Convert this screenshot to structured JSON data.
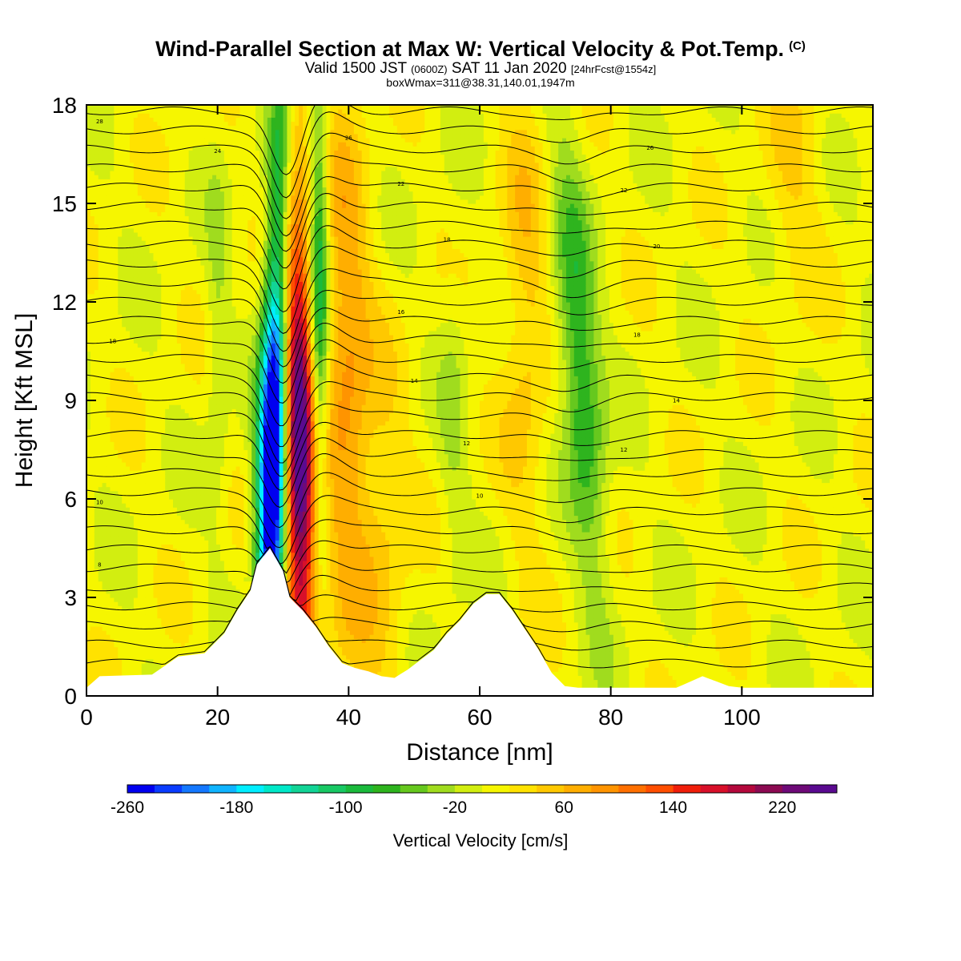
{
  "title": {
    "main": "Wind-Parallel Section at Max W: Vertical Velocity & Pot.Temp.",
    "copyright": "(C)",
    "valid_prefix": "Valid 1500 JST",
    "valid_utc": "(0600Z)",
    "valid_date": "SAT 11 Jan 2020",
    "forecast": "[24hrFcst@1554z]",
    "box": "boxWmax=311@38.31,140.01,1947m"
  },
  "chart_data": {
    "type": "heatmap",
    "xlabel": "Distance [nm]",
    "ylabel": "Height [Kft MSL]",
    "xlim": [
      0,
      120
    ],
    "ylim": [
      0,
      18
    ],
    "x_ticks": [
      "0",
      "20",
      "40",
      "60",
      "80",
      "100"
    ],
    "y_ticks": [
      "0",
      "3",
      "6",
      "9",
      "12",
      "15",
      "18"
    ],
    "colorbar": {
      "title": "Vertical Velocity [cm/s]",
      "range": [
        -260,
        260
      ],
      "step": 20,
      "tick_labels": [
        "-260",
        "-180",
        "-100",
        "-20",
        "60",
        "140",
        "220"
      ],
      "colors": [
        "#0000f0",
        "#0a3cff",
        "#1478ff",
        "#10b4ff",
        "#00eeff",
        "#00e8c8",
        "#12d496",
        "#18c864",
        "#1aba3c",
        "#2eb41e",
        "#66c81e",
        "#a0dc1e",
        "#d2ee10",
        "#f6f600",
        "#ffe200",
        "#ffc800",
        "#ffae00",
        "#ff9400",
        "#ff7000",
        "#ff4e00",
        "#f01e0a",
        "#d8102a",
        "#b4083c",
        "#8c0a52",
        "#6e0a78",
        "#5a0a90"
      ]
    },
    "velocity_features": [
      {
        "kind": "downdraft",
        "x_nm": 28.5,
        "peak_cm_s": -260
      },
      {
        "kind": "updraft",
        "x_nm": 32.5,
        "peak_cm_s": 230
      },
      {
        "kind": "updraft",
        "x_nm": 40,
        "peak_cm_s": 80
      },
      {
        "kind": "downdraft",
        "x_nm": 76,
        "peak_cm_s": -100
      },
      {
        "kind": "updraft",
        "x_nm": 68,
        "peak_cm_s": 40
      }
    ],
    "terrain_kft": {
      "x": [
        0,
        2,
        10,
        14,
        18,
        21,
        23,
        25,
        26,
        28,
        30,
        31,
        33,
        35,
        37,
        39,
        41,
        43,
        45,
        47,
        49,
        51,
        53,
        55,
        57,
        59,
        61,
        63,
        65,
        67,
        69,
        71,
        73,
        75,
        80,
        85,
        90,
        94,
        98,
        100,
        110,
        120
      ],
      "height": [
        0.25,
        0.6,
        0.65,
        1.2,
        1.3,
        1.9,
        2.6,
        3.2,
        4.0,
        4.5,
        3.8,
        3.0,
        2.6,
        2.1,
        1.5,
        1.0,
        0.85,
        0.75,
        0.6,
        0.55,
        0.8,
        1.1,
        1.4,
        1.9,
        2.3,
        2.8,
        3.1,
        3.1,
        2.6,
        2.0,
        1.4,
        0.7,
        0.3,
        0.25,
        0.25,
        0.25,
        0.25,
        0.6,
        0.3,
        0.25,
        0.25,
        0.25
      ]
    },
    "theta_contours": {
      "series": "Pot.Temp.",
      "labels": [
        "8",
        "10",
        "12",
        "14",
        "16",
        "18",
        "20",
        "22",
        "24",
        "26",
        "28"
      ]
    }
  }
}
